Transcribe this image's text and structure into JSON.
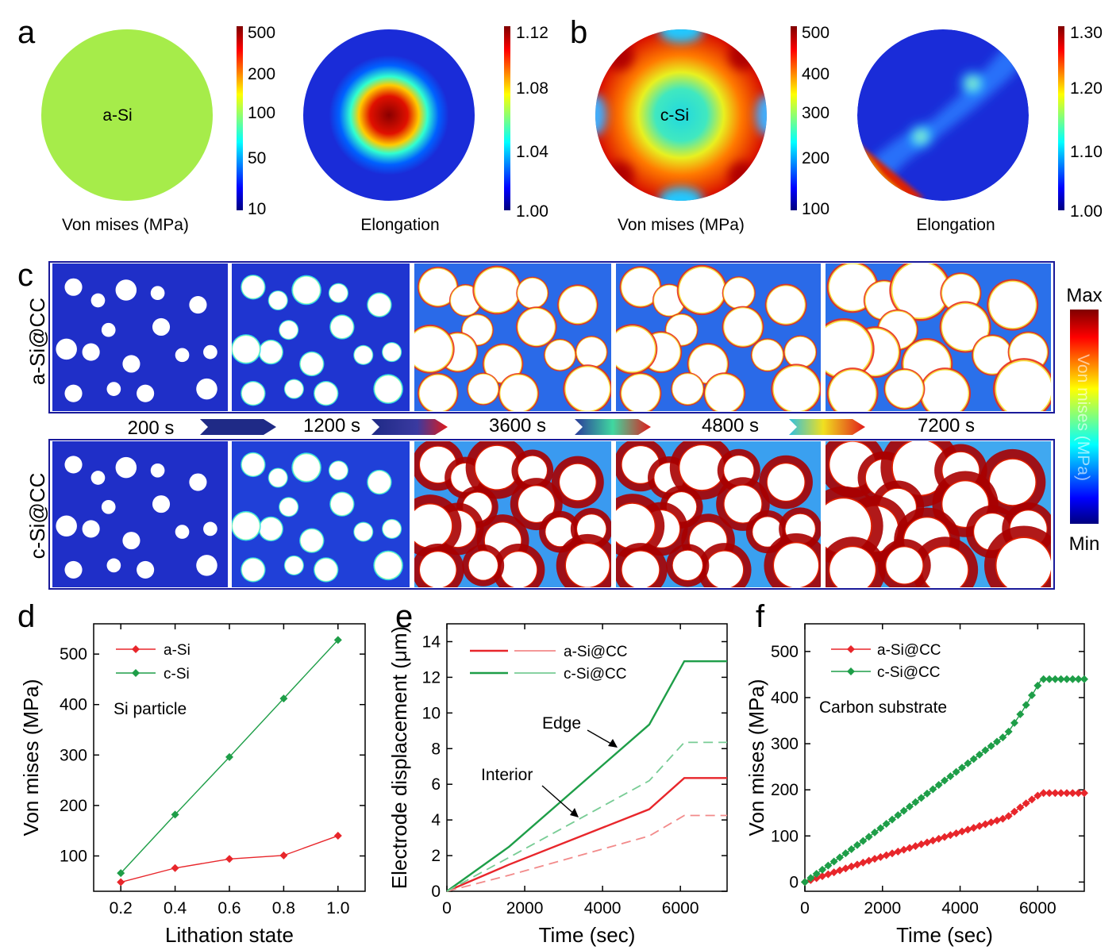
{
  "panel_labels": [
    "a",
    "b",
    "c",
    "d",
    "e",
    "f"
  ],
  "panel_a": {
    "disk1": {
      "label": "a-Si",
      "caption": "Von mises (MPa)",
      "colorbar_ticks": [
        "500",
        "200",
        "100",
        "50",
        "10"
      ]
    },
    "disk2": {
      "caption": "Elongation",
      "colorbar_ticks": [
        "1.12",
        "1.08",
        "1.04",
        "1.00"
      ]
    }
  },
  "panel_b": {
    "disk1": {
      "label": "c-Si",
      "caption": "Von mises (MPa)",
      "colorbar_ticks": [
        "500",
        "400",
        "300",
        "200",
        "100"
      ]
    },
    "disk2": {
      "caption": "Elongation",
      "colorbar_ticks": [
        "1.30",
        "1.20",
        "1.10",
        "1.00"
      ]
    }
  },
  "panel_c": {
    "row_labels": [
      "a-Si@CC",
      "c-Si@CC"
    ],
    "times": [
      "200 s",
      "1200 s",
      "3600 s",
      "4800 s",
      "7200 s"
    ],
    "colorbar": {
      "max": "Max",
      "min": "Min",
      "title": "Von mises (MPa)"
    }
  },
  "chart_data": [
    {
      "panel": "d",
      "type": "line",
      "xlabel": "Lithation state",
      "ylabel": "Von mises (MPa)",
      "xlim": [
        0.1,
        1.1
      ],
      "ylim": [
        30,
        560
      ],
      "xticks": [
        "0.2",
        "0.4",
        "0.6",
        "0.8",
        "1.0"
      ],
      "yticks": [
        "100",
        "200",
        "300",
        "400",
        "500"
      ],
      "annotation": "Si particle",
      "series": [
        {
          "name": "a-Si",
          "color": "#e8262b",
          "x": [
            0.2,
            0.4,
            0.6,
            0.8,
            1.0
          ],
          "y": [
            48,
            76,
            94,
            101,
            140
          ]
        },
        {
          "name": "c-Si",
          "color": "#1e9e48",
          "x": [
            0.2,
            0.4,
            0.6,
            0.8,
            1.0
          ],
          "y": [
            66,
            182,
            296,
            412,
            528
          ]
        }
      ]
    },
    {
      "panel": "e",
      "type": "line",
      "xlabel": "Time (sec)",
      "ylabel": "Electrode displacement (μm)",
      "xlim": [
        0,
        7200
      ],
      "ylim": [
        0,
        15
      ],
      "xticks": [
        "0",
        "2000",
        "4000",
        "6000"
      ],
      "yticks": [
        "0",
        "2",
        "4",
        "6",
        "8",
        "10",
        "12",
        "14"
      ],
      "annotations": [
        "Edge",
        "Interior"
      ],
      "series": [
        {
          "name": "a-Si@CC",
          "role": "edge",
          "color": "#e8262b",
          "x": [
            0,
            1600,
            5200,
            6100,
            7200
          ],
          "y": [
            0,
            1.5,
            4.6,
            6.35,
            6.35
          ]
        },
        {
          "name": "a-Si@CC",
          "role": "interior",
          "color": "#f28a8a",
          "x": [
            0,
            1600,
            5200,
            6100,
            7200
          ],
          "y": [
            0,
            0.9,
            3.1,
            4.25,
            4.25
          ]
        },
        {
          "name": "c-Si@CC",
          "role": "edge",
          "color": "#1e9e48",
          "x": [
            0,
            1600,
            5200,
            6100,
            7200
          ],
          "y": [
            0,
            2.5,
            9.35,
            12.9,
            12.9
          ]
        },
        {
          "name": "c-Si@CC",
          "role": "interior",
          "color": "#78cc95",
          "x": [
            0,
            1600,
            5200,
            6100,
            7200
          ],
          "y": [
            0,
            1.9,
            6.2,
            8.35,
            8.35
          ]
        }
      ]
    },
    {
      "panel": "f",
      "type": "line",
      "xlabel": "Time (sec)",
      "ylabel": "Von mises (MPa)",
      "xlim": [
        0,
        7200
      ],
      "ylim": [
        -20,
        560
      ],
      "xticks": [
        "0",
        "2000",
        "4000",
        "6000"
      ],
      "yticks": [
        "0",
        "100",
        "200",
        "300",
        "400",
        "500"
      ],
      "annotation": "Carbon substrate",
      "series": [
        {
          "name": "a-Si@CC",
          "color": "#e8262b",
          "x": [
            0,
            1600,
            5200,
            5600,
            6100,
            7200
          ],
          "y": [
            0,
            45,
            140,
            165,
            193,
            193
          ]
        },
        {
          "name": "c-Si@CC",
          "color": "#1e9e48",
          "x": [
            0,
            1600,
            5200,
            5600,
            6100,
            7200
          ],
          "y": [
            0,
            95,
            320,
            370,
            440,
            440
          ]
        }
      ]
    }
  ]
}
